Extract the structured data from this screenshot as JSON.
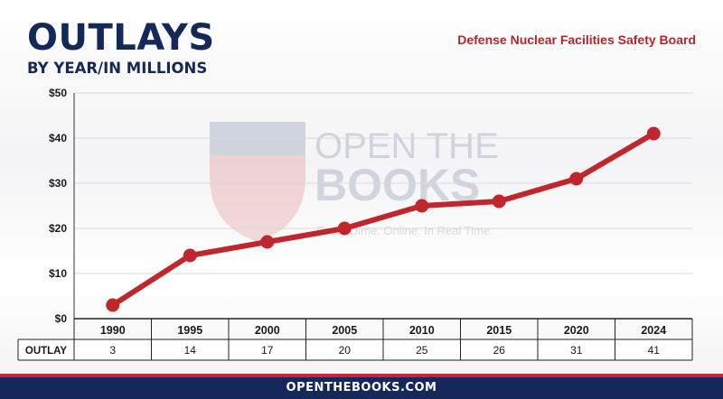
{
  "header": {
    "title": "OUTLAYS",
    "subtitle": "BY YEAR/IN MILLIONS",
    "agency": "Defense Nuclear Facilities Safety Board"
  },
  "watermark": {
    "line1": "OPEN THE",
    "line2": "BOOKS",
    "tagline": "Every Dime. Online. In Real Time."
  },
  "footer": {
    "url": "OPENTHEBOOKS.COM"
  },
  "colors": {
    "navy": "#14285a",
    "red": "#c0272d",
    "grid": "#d9d9d9"
  },
  "chart_data": {
    "type": "line",
    "title": "OUTLAYS",
    "subtitle": "BY YEAR/IN MILLIONS",
    "categories": [
      "1990",
      "1995",
      "2000",
      "2005",
      "2010",
      "2015",
      "2020",
      "2024"
    ],
    "series": [
      {
        "name": "OUTLAY",
        "values": [
          3,
          14,
          17,
          20,
          25,
          26,
          31,
          41
        ]
      }
    ],
    "y_ticks": [
      "$0",
      "$10",
      "$20",
      "$30",
      "$40",
      "$50"
    ],
    "ylim": [
      0,
      50
    ],
    "grid": true,
    "table_row_label": "OUTLAY"
  }
}
